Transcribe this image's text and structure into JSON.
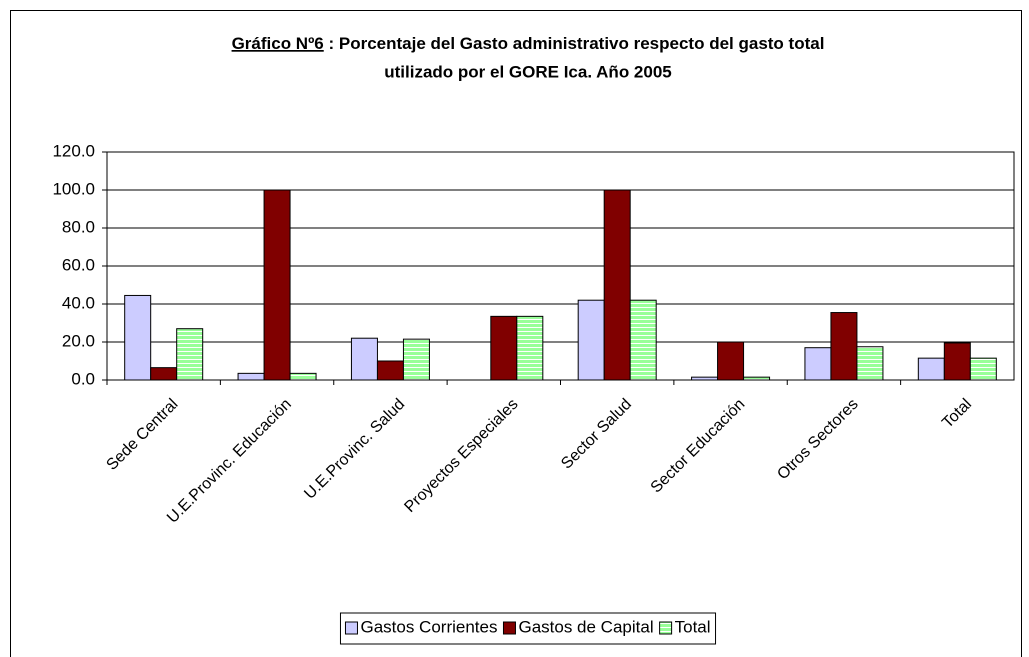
{
  "chart_data": {
    "type": "bar",
    "title": [
      "Gráfico Nº6",
      " : Porcentaje del Gasto administrativo respecto del gasto total",
      "utilizado por el GORE Ica. Año 2005"
    ],
    "categories": [
      "Sede Central",
      "U.E.Provinc. Educación",
      "U.E.Provinc. Salud",
      "Proyectos Especiales",
      "Sector Salud",
      "Sector Educación",
      "Otros Sectores",
      "Total"
    ],
    "series": [
      {
        "name": "Gastos Corrientes",
        "color": "#ccccff",
        "values": [
          44.5,
          3.5,
          22,
          0,
          42,
          1.5,
          17,
          11.5
        ]
      },
      {
        "name": "Gastos de Capital",
        "color": "#800000",
        "values": [
          6.5,
          100,
          10,
          33.5,
          100,
          20,
          35.5,
          19.5
        ]
      },
      {
        "name": "Total",
        "color": "#99ff99",
        "values": [
          27,
          3.5,
          21.5,
          33.5,
          42,
          1.5,
          17.5,
          11.5
        ]
      }
    ],
    "ylim": [
      0,
      120
    ],
    "yticks": [
      {
        "value": 0,
        "label": "0.0"
      },
      {
        "value": 20,
        "label": "20.0"
      },
      {
        "value": 40,
        "label": "40.0"
      },
      {
        "value": 60,
        "label": "60.0"
      },
      {
        "value": 80,
        "label": "80.0"
      },
      {
        "value": 100,
        "label": "100.0"
      },
      {
        "value": 120,
        "label": "120.0"
      }
    ],
    "grid": true,
    "legend": "bottom"
  }
}
